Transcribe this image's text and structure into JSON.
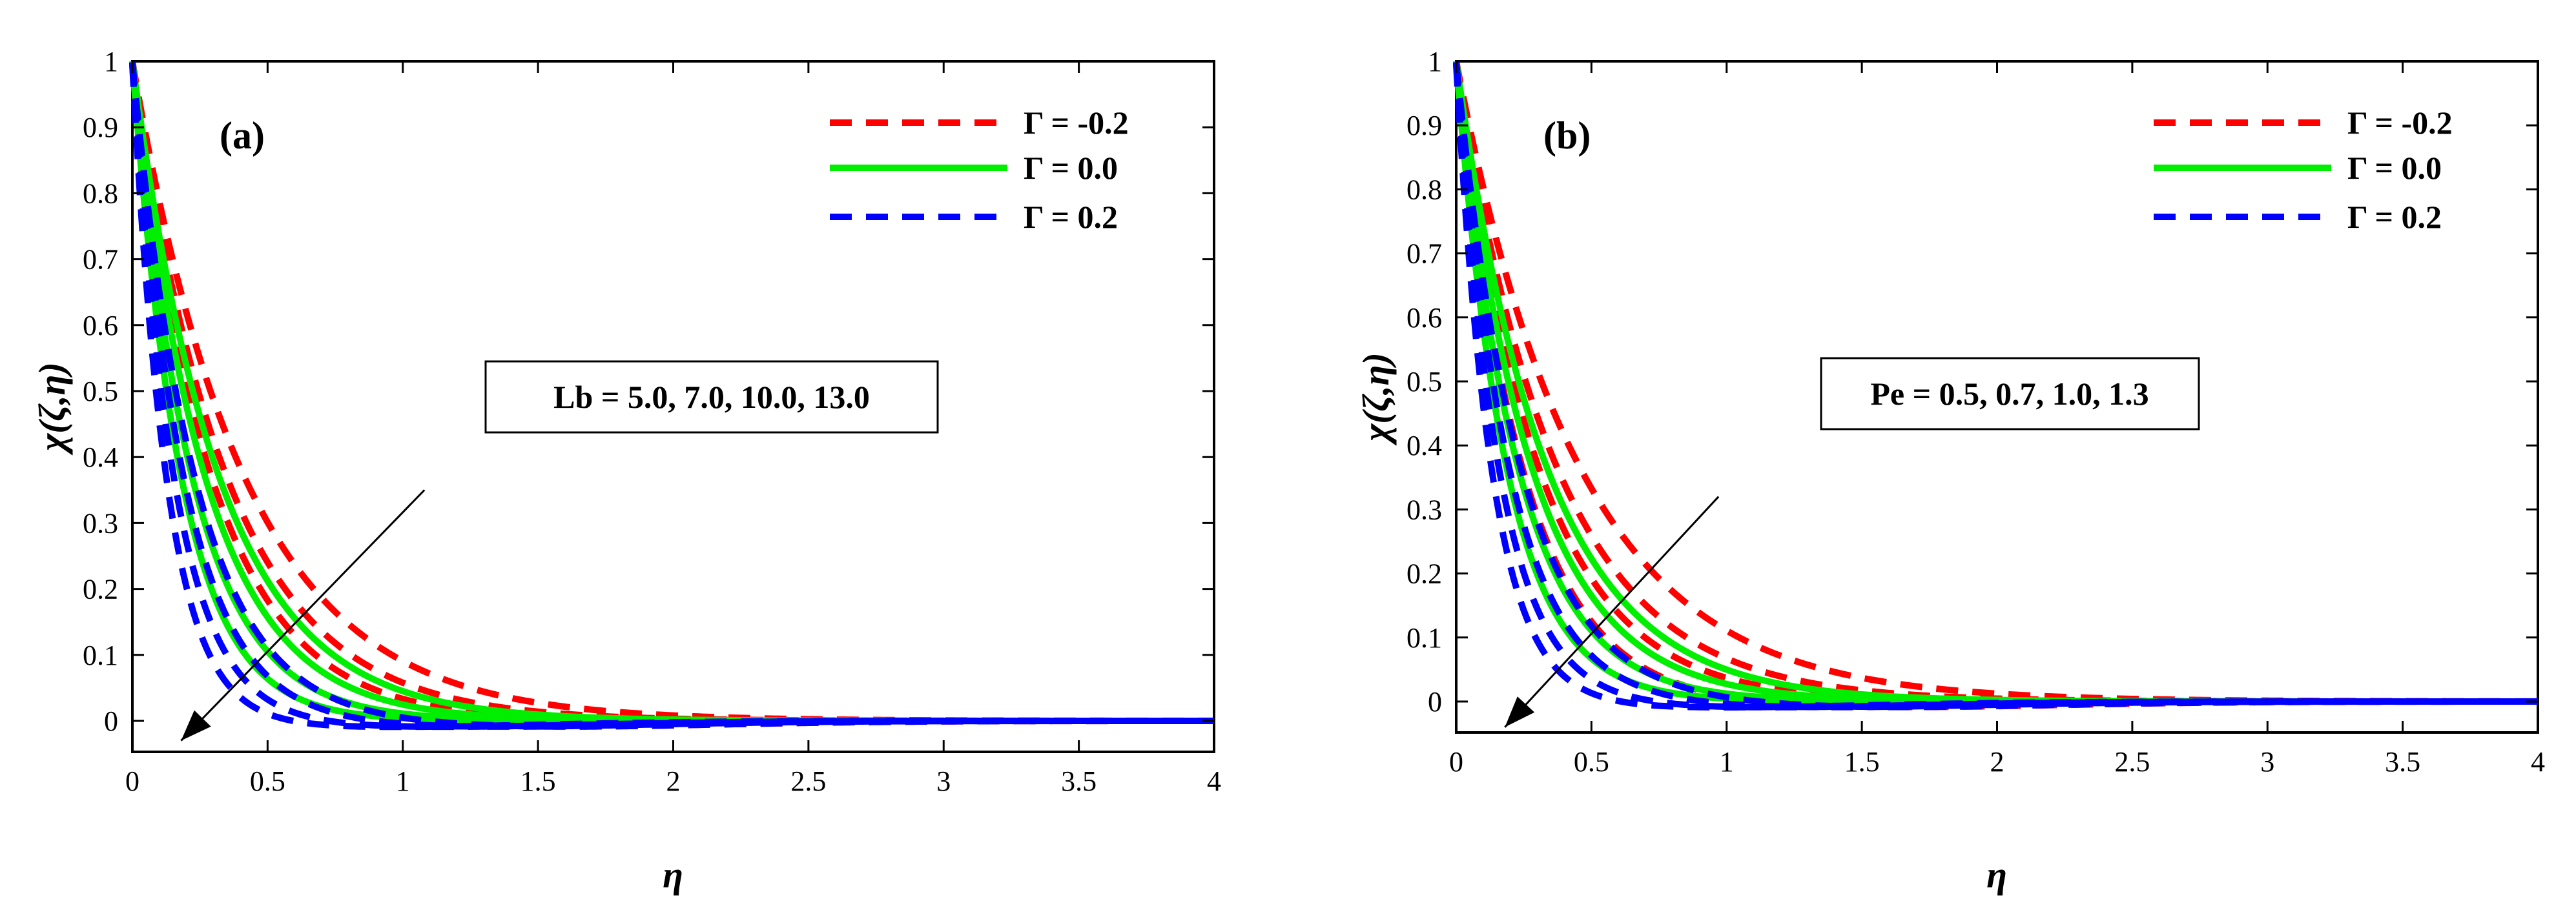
{
  "chart_data": [
    {
      "type": "line",
      "panel_label": "(a)",
      "xlabel": "η",
      "ylabel": "χ(ζ,η)",
      "xlim": [
        0,
        4
      ],
      "ylim": [
        0,
        1
      ],
      "x_ticks": [
        "0",
        "0.5",
        "1",
        "1.5",
        "2",
        "2.5",
        "3",
        "3.5",
        "4"
      ],
      "y_ticks": [
        "0",
        "0.1",
        "0.2",
        "0.3",
        "0.4",
        "0.5",
        "0.6",
        "0.7",
        "0.8",
        "0.9",
        "1"
      ],
      "legend": [
        {
          "label": "Γ = -0.2",
          "color": "#ff0000",
          "style": "dashed"
        },
        {
          "label": "Γ = 0.0",
          "color": "#00ee00",
          "style": "solid"
        },
        {
          "label": "Γ = 0.2",
          "color": "#0000ff",
          "style": "dashed"
        }
      ],
      "param_box": "Lb = 5.0, 7.0, 10.0, 13.0",
      "arrow": {
        "from": [
          1.08,
          0.35
        ],
        "to": [
          0.18,
          -0.03
        ]
      },
      "series": [
        {
          "name": "Γ = -0.2",
          "color": "#ff0000",
          "style": "dashed",
          "decay": [
            2.4,
            2.85,
            3.4,
            4.3
          ]
        },
        {
          "name": "Γ = 0.0",
          "color": "#00ee00",
          "style": "solid",
          "decay": [
            3.1,
            3.7,
            4.5,
            5.5
          ]
        },
        {
          "name": "Γ = 0.2",
          "color": "#0000ff",
          "style": "dashed",
          "decay": [
            4.3,
            5.2,
            6.4,
            7.8
          ]
        }
      ]
    },
    {
      "type": "line",
      "panel_label": "(b)",
      "xlabel": "η",
      "ylabel": "χ(ζ,η)",
      "xlim": [
        0,
        4
      ],
      "ylim": [
        0,
        1
      ],
      "x_ticks": [
        "0",
        "0.5",
        "1",
        "1.5",
        "2",
        "2.5",
        "3",
        "3.5",
        "4"
      ],
      "y_ticks": [
        "0",
        "0.1",
        "0.2",
        "0.3",
        "0.4",
        "0.5",
        "0.6",
        "0.7",
        "0.8",
        "0.9",
        "1"
      ],
      "legend": [
        {
          "label": "Γ = -0.2",
          "color": "#ff0000",
          "style": "dashed"
        },
        {
          "label": "Γ = 0.0",
          "color": "#00ee00",
          "style": "solid"
        },
        {
          "label": "Γ = 0.2",
          "color": "#0000ff",
          "style": "dashed"
        }
      ],
      "param_box": "Pe = 0.5, 0.7, 1.0, 1.3",
      "arrow": {
        "from": [
          0.97,
          0.32
        ],
        "to": [
          0.18,
          -0.04
        ]
      },
      "series": [
        {
          "name": "Γ = -0.2",
          "color": "#ff0000",
          "style": "dashed",
          "decay": [
            2.2,
            2.7,
            3.3,
            4.1
          ]
        },
        {
          "name": "Γ = 0.0",
          "color": "#00ee00",
          "style": "solid",
          "decay": [
            3.0,
            3.6,
            4.4,
            5.4
          ]
        },
        {
          "name": "Γ = 0.2",
          "color": "#0000ff",
          "style": "dashed",
          "decay": [
            4.2,
            5.1,
            6.3,
            7.6
          ]
        }
      ]
    }
  ]
}
